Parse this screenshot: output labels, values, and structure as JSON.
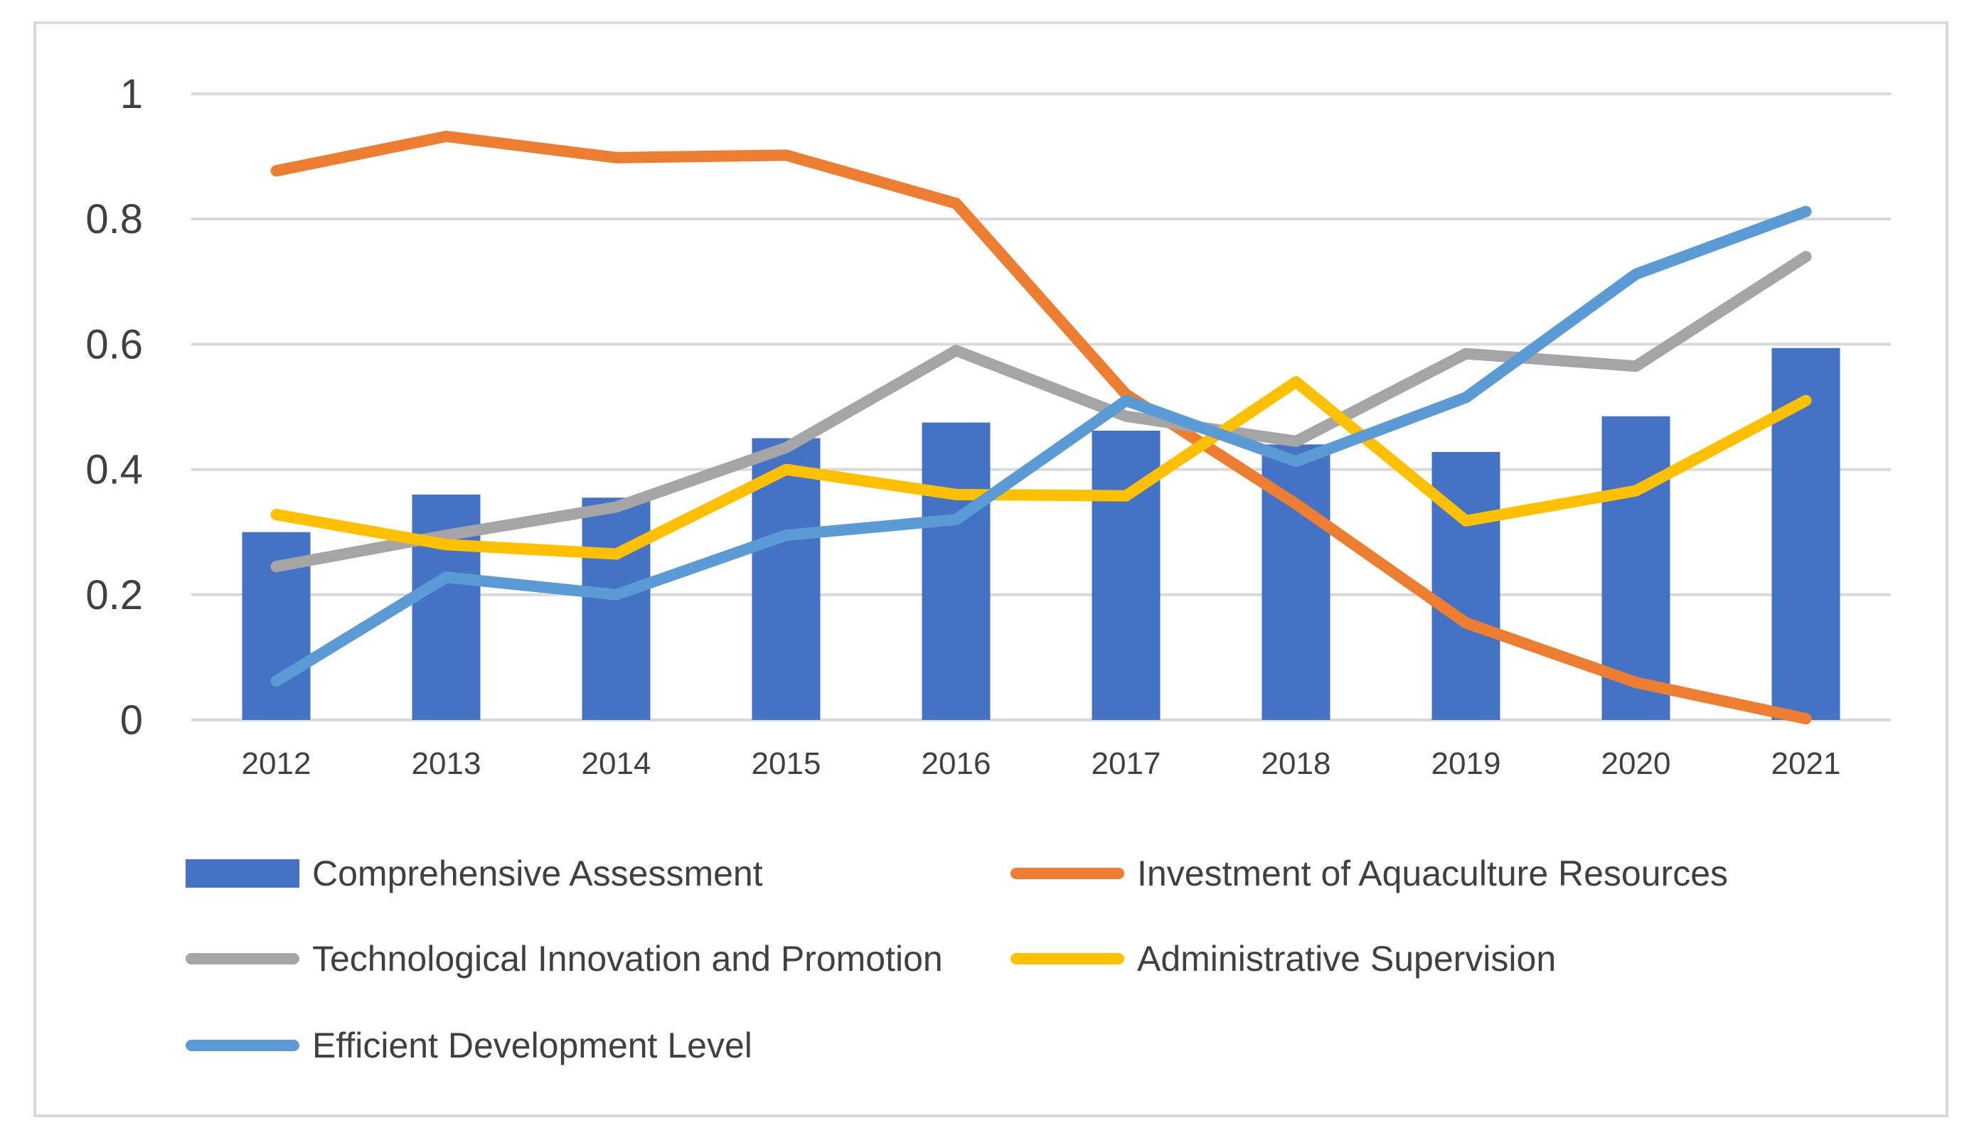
{
  "chart_data": {
    "type": "bar",
    "title": "",
    "xlabel": "",
    "ylabel": "",
    "categories": [
      "2012",
      "2013",
      "2014",
      "2015",
      "2016",
      "2017",
      "2018",
      "2019",
      "2020",
      "2021"
    ],
    "ylim": [
      0,
      1
    ],
    "yticks": [
      "0",
      "0.2",
      "0.4",
      "0.6",
      "0.8",
      "1"
    ],
    "ytick_values": [
      0,
      0.2,
      0.4,
      0.6,
      0.8,
      1
    ],
    "grid": true,
    "legend_position": "bottom",
    "series": [
      {
        "name": "Comprehensive Assessment",
        "kind": "bar",
        "color": "#4472c4",
        "values": [
          0.3,
          0.36,
          0.355,
          0.45,
          0.475,
          0.462,
          0.44,
          0.428,
          0.485,
          0.594
        ]
      },
      {
        "name": "Investment of Aquaculture Resources",
        "kind": "line",
        "color": "#ed7d31",
        "values": [
          0.877,
          0.932,
          0.898,
          0.902,
          0.825,
          0.52,
          0.345,
          0.155,
          0.06,
          0.002
        ]
      },
      {
        "name": "Technological Innovation and Promotion",
        "kind": "line",
        "color": "#a5a5a5",
        "values": [
          0.245,
          0.295,
          0.34,
          0.435,
          0.59,
          0.485,
          0.445,
          0.585,
          0.565,
          0.74
        ]
      },
      {
        "name": "Administrative Supervision",
        "kind": "line",
        "color": "#ffc000",
        "values": [
          0.328,
          0.28,
          0.265,
          0.4,
          0.36,
          0.358,
          0.54,
          0.318,
          0.366,
          0.51
        ]
      },
      {
        "name": "Efficient Development Level",
        "kind": "line",
        "color": "#5b9bd5",
        "values": [
          0.062,
          0.228,
          0.2,
          0.295,
          0.32,
          0.51,
          0.413,
          0.515,
          0.712,
          0.812
        ]
      }
    ]
  }
}
